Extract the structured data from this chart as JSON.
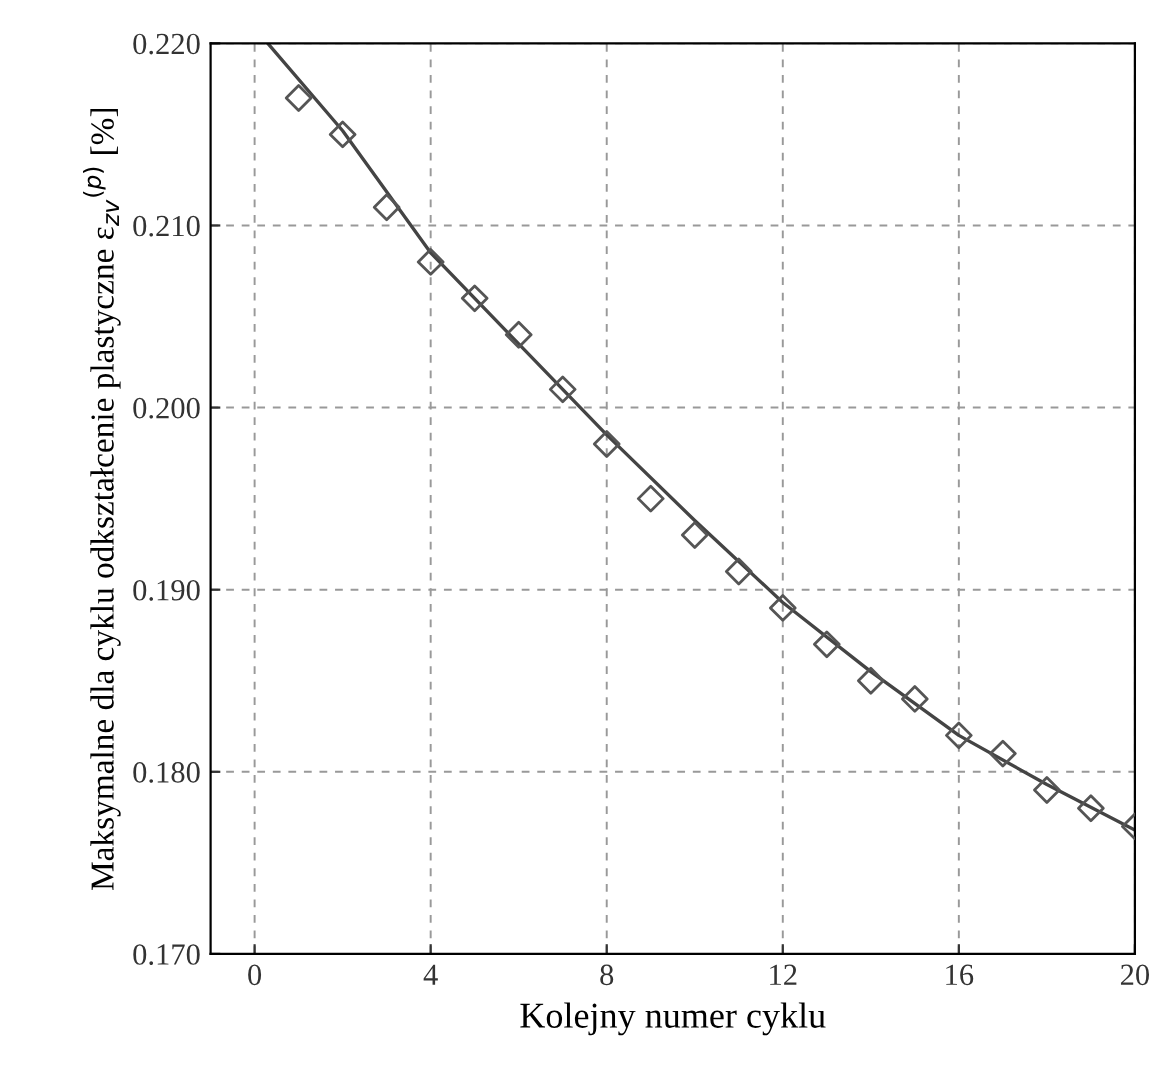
{
  "chart_data": {
    "type": "scatter",
    "xlabel": "Kolejny numer cyklu",
    "ylabel": "Maksymalne dla cyklu odkształcenie plastyczne ε$_{zv}$$^{(p)}$ [%]",
    "marker": "diamond",
    "grid": true,
    "legend": false,
    "xlim": [
      -1,
      20
    ],
    "ylim": [
      0.17,
      0.22
    ],
    "xticks": [
      0,
      4,
      8,
      12,
      16,
      20
    ],
    "yticks": [
      {
        "value": 0.17,
        "label": "0.170"
      },
      {
        "value": 0.18,
        "label": "0.180"
      },
      {
        "value": 0.19,
        "label": "0.190"
      },
      {
        "value": 0.2,
        "label": "0.200"
      },
      {
        "value": 0.21,
        "label": "0.210"
      },
      {
        "value": 0.22,
        "label": "0.220"
      }
    ],
    "series": [
      {
        "color": "#555555",
        "x": [
          1,
          2,
          3,
          4,
          5,
          6,
          7,
          8,
          9,
          10,
          11,
          12,
          13,
          14,
          15,
          16,
          17,
          18,
          19,
          20
        ],
        "values": [
          0.217,
          0.215,
          0.211,
          0.208,
          0.206,
          0.204,
          0.201,
          0.198,
          0.195,
          0.193,
          0.191,
          0.189,
          0.187,
          0.185,
          0.184,
          0.182,
          0.181,
          0.179,
          0.178,
          0.177
        ]
      },
      {
        "type": "line",
        "color": "#444444",
        "line_style": "solid",
        "marker": "none",
        "x": [
          0.3,
          2,
          4,
          6,
          8,
          10,
          12,
          14,
          16,
          18,
          20
        ],
        "values": [
          0.22,
          0.2152,
          0.2085,
          0.2035,
          0.1985,
          0.1938,
          0.1893,
          0.1855,
          0.182,
          0.1793,
          0.1768
        ]
      }
    ]
  }
}
